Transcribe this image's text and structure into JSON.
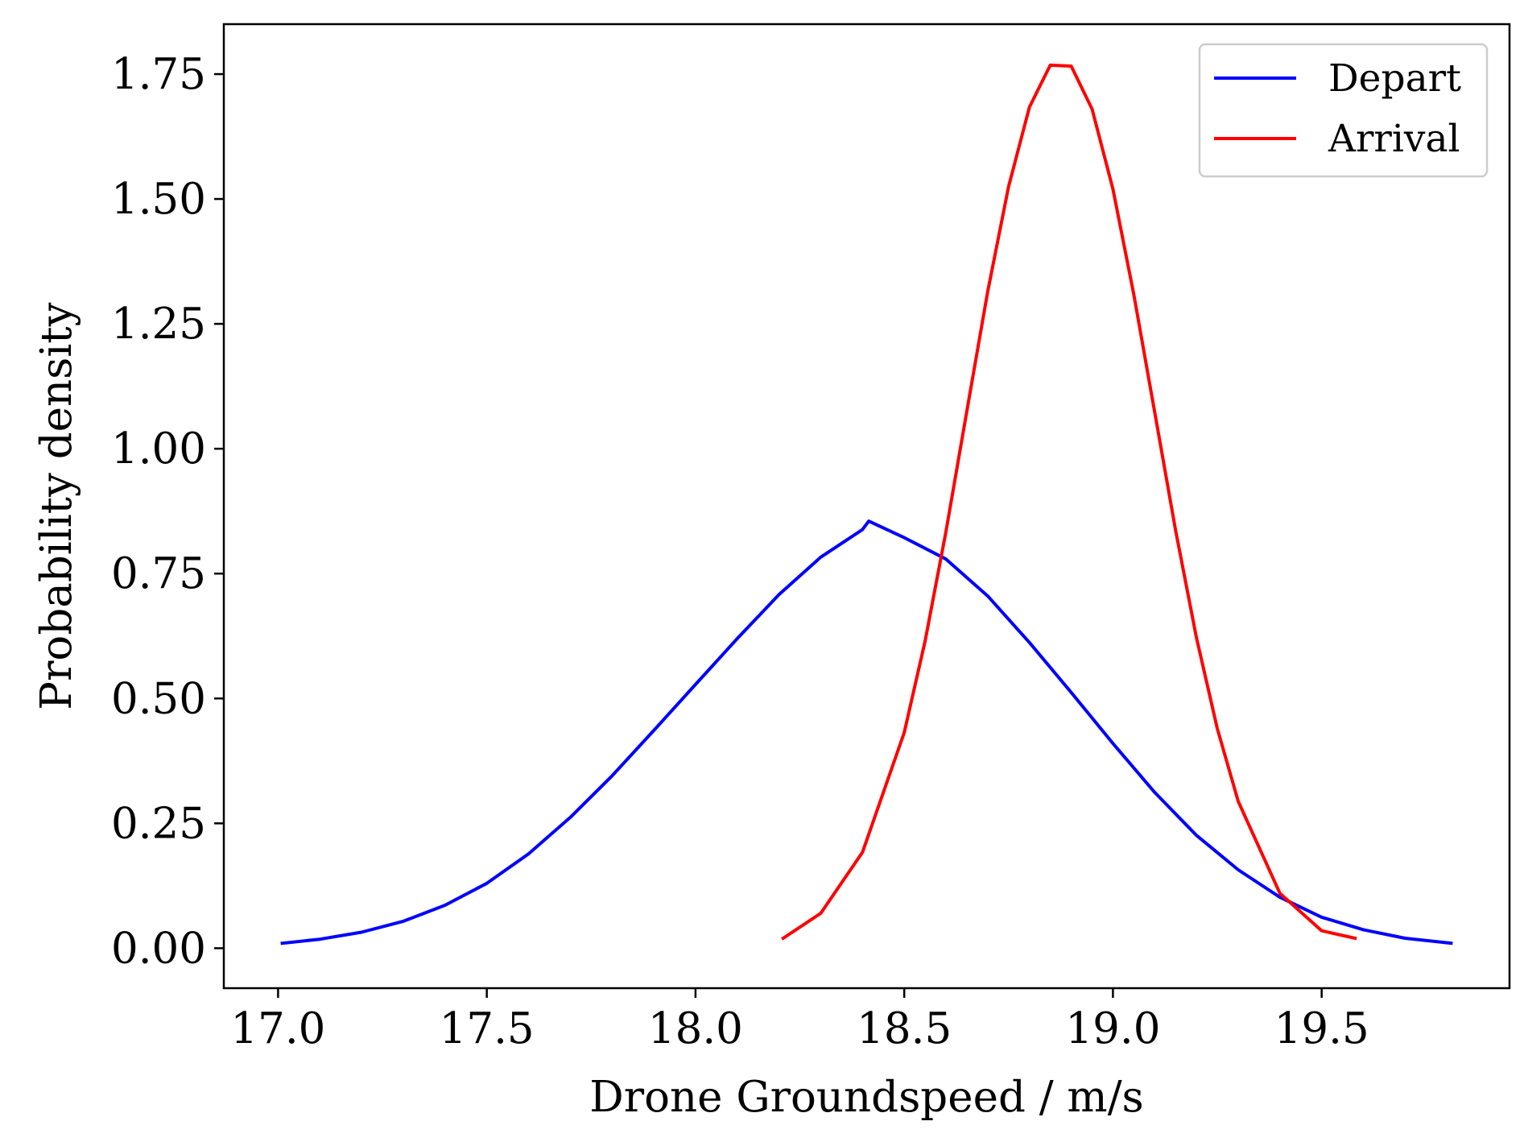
{
  "chart_data": {
    "type": "line",
    "title": "",
    "xlabel": "Drone Groundspeed / m/s",
    "ylabel": "Probability density",
    "xlim": [
      16.87,
      19.95
    ],
    "ylim": [
      -0.08,
      1.85
    ],
    "xticks": [
      17.0,
      17.5,
      18.0,
      18.5,
      19.0,
      19.5
    ],
    "xtick_labels": [
      "17.0",
      "17.5",
      "18.0",
      "18.5",
      "19.0",
      "19.5"
    ],
    "yticks": [
      0.0,
      0.25,
      0.5,
      0.75,
      1.0,
      1.25,
      1.5,
      1.75
    ],
    "ytick_labels": [
      "0.00",
      "0.25",
      "0.50",
      "0.75",
      "1.00",
      "1.25",
      "1.50",
      "1.75"
    ],
    "grid": false,
    "legend_position": "top-right",
    "series": [
      {
        "name": "Depart",
        "color": "#0000ff",
        "x": [
          17.01,
          17.1,
          17.2,
          17.3,
          17.4,
          17.5,
          17.6,
          17.7,
          17.8,
          17.9,
          18.0,
          18.1,
          18.2,
          18.3,
          18.4,
          18.415,
          18.5,
          18.6,
          18.7,
          18.8,
          18.9,
          19.0,
          19.1,
          19.2,
          19.3,
          19.4,
          19.5,
          19.6,
          19.7,
          19.81
        ],
        "y": [
          0.01,
          0.018,
          0.032,
          0.054,
          0.086,
          0.13,
          0.189,
          0.262,
          0.345,
          0.436,
          0.528,
          0.62,
          0.708,
          0.783,
          0.838,
          0.855,
          0.822,
          0.779,
          0.705,
          0.612,
          0.512,
          0.41,
          0.312,
          0.226,
          0.157,
          0.102,
          0.062,
          0.037,
          0.02,
          0.01
        ]
      },
      {
        "name": "Arrival",
        "color": "#ff0000",
        "x": [
          18.21,
          18.3,
          18.4,
          18.5,
          18.55,
          18.6,
          18.65,
          18.7,
          18.75,
          18.8,
          18.85,
          18.9,
          18.95,
          19.0,
          19.05,
          19.1,
          19.15,
          19.2,
          19.25,
          19.3,
          19.4,
          19.5,
          19.58
        ],
        "y": [
          0.02,
          0.07,
          0.192,
          0.432,
          0.615,
          0.834,
          1.075,
          1.315,
          1.525,
          1.684,
          1.768,
          1.766,
          1.68,
          1.52,
          1.309,
          1.073,
          0.837,
          0.622,
          0.44,
          0.294,
          0.11,
          0.035,
          0.02
        ]
      }
    ]
  }
}
